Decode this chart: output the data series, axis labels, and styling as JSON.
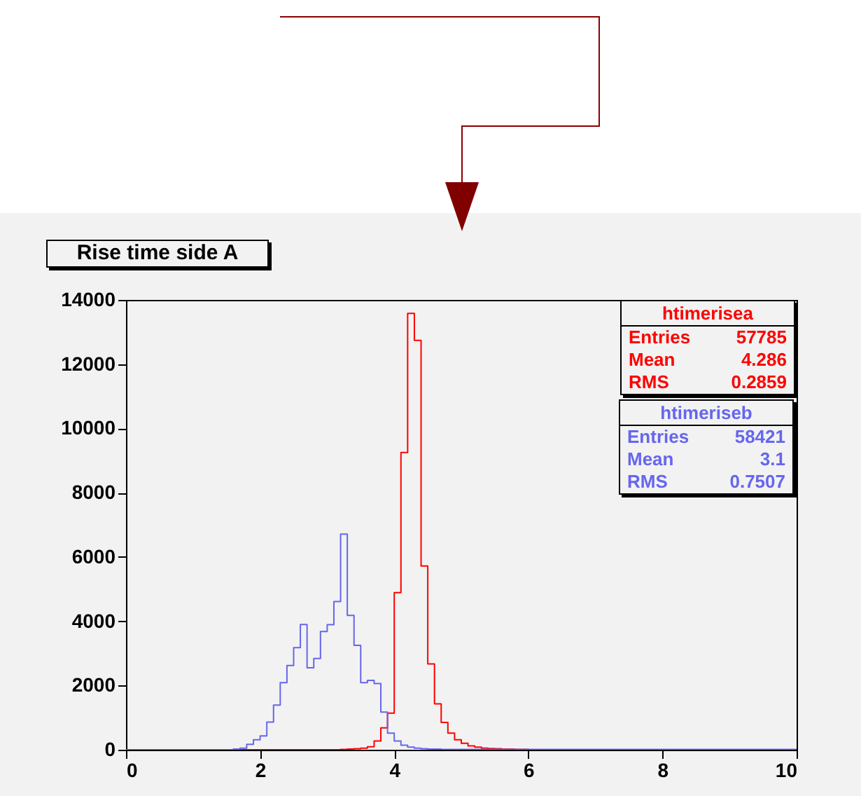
{
  "chart_data": {
    "type": "histogram",
    "title": "Rise time side A",
    "bins": [
      0,
      0.1,
      0.2,
      0.3,
      0.4,
      0.5,
      0.6,
      0.7,
      0.8,
      0.9,
      1,
      1.1,
      1.2,
      1.3,
      1.4,
      1.5,
      1.6,
      1.7,
      1.8,
      1.9,
      2,
      2.1,
      2.2,
      2.3,
      2.4,
      2.5,
      2.6,
      2.7,
      2.8,
      2.9,
      3,
      3.1,
      3.2,
      3.3,
      3.4,
      3.5,
      3.6,
      3.7,
      3.8,
      3.9,
      4,
      4.1,
      4.2,
      4.3,
      4.4,
      4.5,
      4.6,
      4.7,
      4.8,
      4.9,
      5,
      5.1,
      5.2,
      5.3,
      5.4,
      5.5,
      5.6,
      5.7,
      5.8,
      5.9,
      6,
      6.1,
      6.2,
      6.3,
      6.4,
      6.5,
      6.6,
      6.7,
      6.8,
      6.9,
      7,
      7.1,
      7.2,
      7.3,
      7.4,
      7.5,
      7.6,
      7.7,
      7.8,
      7.9,
      8,
      8.1,
      8.2,
      8.3,
      8.4,
      8.5,
      8.6,
      8.7,
      8.8,
      8.9,
      9,
      9.1,
      9.2,
      9.3,
      9.4,
      9.5,
      9.6,
      9.7,
      9.8,
      9.9,
      10
    ],
    "series": [
      {
        "name": "htimerisea",
        "color": "#ff0000",
        "values": [
          0,
          0,
          0,
          0,
          0,
          0,
          0,
          0,
          0,
          0,
          0,
          0,
          0,
          0,
          0,
          0,
          0,
          0,
          0,
          0,
          0,
          0,
          0,
          0,
          0,
          0,
          0,
          0,
          0,
          0,
          0,
          0,
          10,
          20,
          30,
          50,
          90,
          270,
          680,
          1140,
          4890,
          9250,
          13580,
          12740,
          5720,
          2670,
          1430,
          850,
          520,
          310,
          200,
          120,
          80,
          50,
          40,
          30,
          20,
          20,
          10,
          10,
          0,
          0,
          0,
          0,
          0,
          0,
          0,
          0,
          0,
          0,
          0,
          0,
          0,
          0,
          0,
          0,
          0,
          0,
          0,
          0,
          0,
          0,
          0,
          0,
          0,
          0,
          0,
          0,
          0,
          0,
          0,
          0,
          0,
          0,
          0,
          0,
          0,
          0,
          0,
          0
        ]
      },
      {
        "name": "htimeriseb",
        "color": "#6666ee",
        "values": [
          0,
          0,
          0,
          0,
          0,
          0,
          0,
          0,
          0,
          0,
          0,
          0,
          0,
          0,
          0,
          0,
          20,
          50,
          170,
          310,
          430,
          860,
          1390,
          2090,
          2620,
          3180,
          3900,
          2550,
          2840,
          3680,
          3890,
          4610,
          6710,
          4180,
          3250,
          2090,
          2160,
          2060,
          1170,
          520,
          270,
          140,
          80,
          50,
          30,
          20,
          20,
          10,
          10,
          10,
          10,
          10,
          10,
          10,
          10,
          10,
          10,
          10,
          10,
          10,
          10,
          10,
          10,
          10,
          10,
          10,
          10,
          10,
          10,
          10,
          10,
          10,
          10,
          10,
          10,
          10,
          10,
          10,
          10,
          10,
          10,
          10,
          10,
          10,
          10,
          10,
          10,
          10,
          10,
          10,
          10,
          10,
          10,
          10,
          10,
          10,
          10,
          10,
          10,
          10
        ]
      }
    ],
    "annotations": [
      "Entries 57785",
      "Mean 4.286",
      "RMS 0.2859",
      "Entries 58421",
      "Mean 3.1",
      "RMS 0.7507"
    ],
    "xlim": [
      0,
      10
    ],
    "xticks": [
      0,
      2,
      4,
      6,
      8,
      10
    ],
    "ylim": [
      0,
      14000
    ],
    "yticks": [
      0,
      2000,
      4000,
      6000,
      8000,
      10000,
      12000,
      14000
    ],
    "grid": false,
    "legend": "top right"
  }
}
